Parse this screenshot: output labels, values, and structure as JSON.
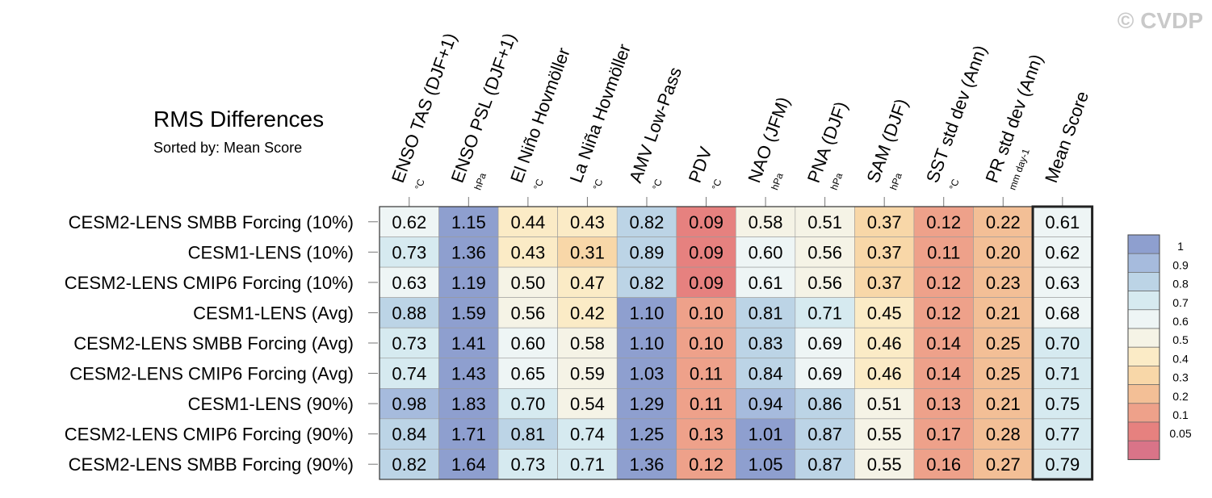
{
  "watermark": "© CVDP",
  "chart_data": {
    "type": "heatmap",
    "title": "RMS Differences",
    "subtitle": "Sorted by: Mean Score",
    "columns": [
      {
        "name": "ENSO TAS (DJF+1)",
        "unit": "°C"
      },
      {
        "name": "ENSO PSL (DJF+1)",
        "unit": "hPa"
      },
      {
        "name": "El Niño Hovmöller",
        "unit": "°C"
      },
      {
        "name": "La Niña Hovmöller",
        "unit": "°C"
      },
      {
        "name": "AMV Low-Pass",
        "unit": "°C"
      },
      {
        "name": "PDV",
        "unit": "°C"
      },
      {
        "name": "NAO (JFM)",
        "unit": "hPa"
      },
      {
        "name": "PNA (DJF)",
        "unit": "hPa"
      },
      {
        "name": "SAM (DJF)",
        "unit": "hPa"
      },
      {
        "name": "SST std dev (Ann)",
        "unit": "°C"
      },
      {
        "name": "PR std dev (Ann)",
        "unit": "mm day-1"
      },
      {
        "name": "Mean Score",
        "unit": ""
      }
    ],
    "rows": [
      "CESM2-LENS SMBB Forcing (10%)",
      "CESM1-LENS (10%)",
      "CESM2-LENS CMIP6 Forcing (10%)",
      "CESM1-LENS (Avg)",
      "CESM2-LENS SMBB Forcing (Avg)",
      "CESM2-LENS CMIP6 Forcing (Avg)",
      "CESM1-LENS (90%)",
      "CESM2-LENS CMIP6 Forcing (90%)",
      "CESM2-LENS SMBB Forcing (90%)"
    ],
    "values": [
      [
        "0.62",
        "1.15",
        "0.44",
        "0.43",
        "0.82",
        "0.09",
        "0.58",
        "0.51",
        "0.37",
        "0.12",
        "0.22",
        "0.61"
      ],
      [
        "0.73",
        "1.36",
        "0.43",
        "0.31",
        "0.89",
        "0.09",
        "0.60",
        "0.56",
        "0.37",
        "0.11",
        "0.20",
        "0.62"
      ],
      [
        "0.63",
        "1.19",
        "0.50",
        "0.47",
        "0.82",
        "0.09",
        "0.61",
        "0.56",
        "0.37",
        "0.12",
        "0.23",
        "0.63"
      ],
      [
        "0.88",
        "1.59",
        "0.56",
        "0.42",
        "1.10",
        "0.10",
        "0.81",
        "0.71",
        "0.45",
        "0.12",
        "0.21",
        "0.68"
      ],
      [
        "0.73",
        "1.41",
        "0.60",
        "0.58",
        "1.10",
        "0.10",
        "0.83",
        "0.69",
        "0.46",
        "0.14",
        "0.25",
        "0.70"
      ],
      [
        "0.74",
        "1.43",
        "0.65",
        "0.59",
        "1.03",
        "0.11",
        "0.84",
        "0.69",
        "0.46",
        "0.14",
        "0.25",
        "0.71"
      ],
      [
        "0.98",
        "1.83",
        "0.70",
        "0.54",
        "1.29",
        "0.11",
        "0.94",
        "0.86",
        "0.51",
        "0.13",
        "0.21",
        "0.75"
      ],
      [
        "0.84",
        "1.71",
        "0.81",
        "0.74",
        "1.25",
        "0.13",
        "1.01",
        "0.87",
        "0.55",
        "0.17",
        "0.28",
        "0.77"
      ],
      [
        "0.82",
        "1.64",
        "0.73",
        "0.71",
        "1.36",
        "0.12",
        "1.05",
        "0.87",
        "0.55",
        "0.16",
        "0.27",
        "0.79"
      ]
    ],
    "colorbar": {
      "levels": [
        "1",
        "0.9",
        "0.8",
        "0.7",
        "0.6",
        "0.5",
        "0.4",
        "0.3",
        "0.2",
        "0.1",
        "0.05"
      ],
      "colors": [
        "#8e9fcf",
        "#a6bbdd",
        "#bcd4e6",
        "#d6eaf0",
        "#eef5f5",
        "#f5f3e6",
        "#fbebc6",
        "#f8d7a8",
        "#f3bf96",
        "#eea18a",
        "#e6817f",
        "#d97488"
      ]
    }
  }
}
